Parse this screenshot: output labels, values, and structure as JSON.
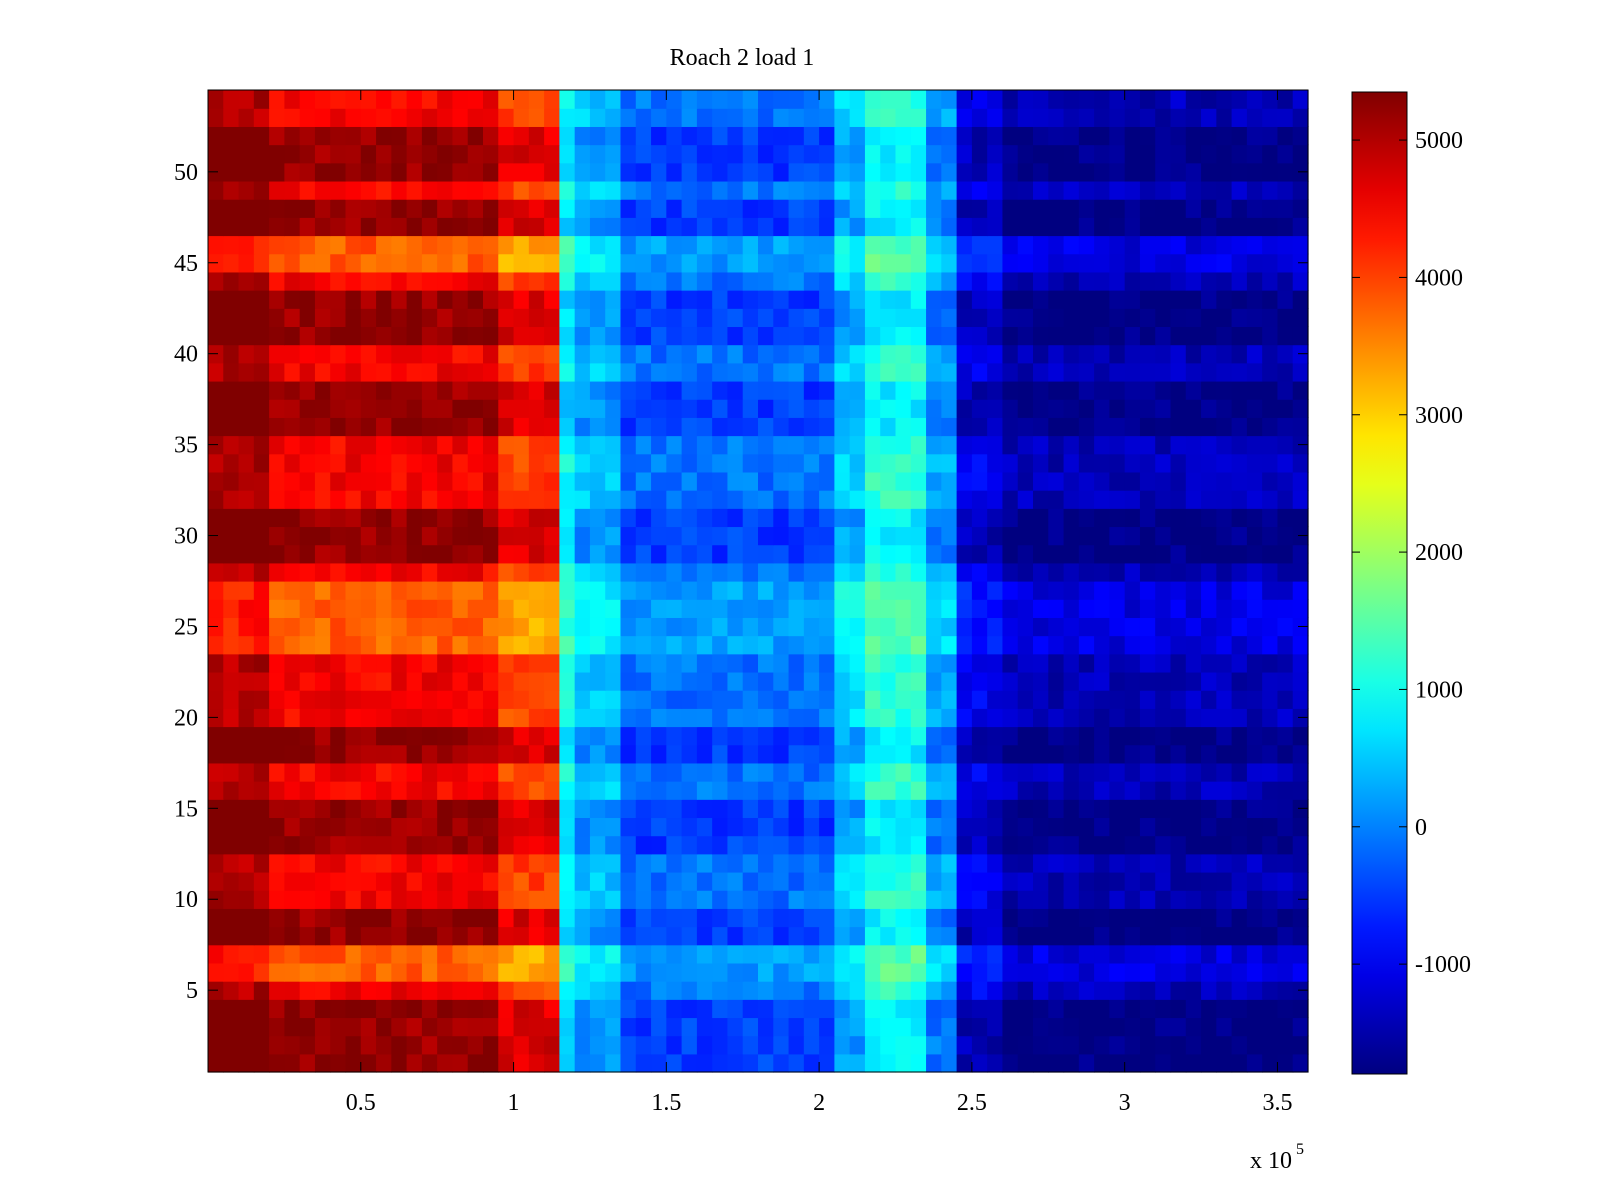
{
  "chart_data": {
    "type": "heatmap",
    "title": "Roach 2 load 1",
    "xlabel": "",
    "ylabel": "",
    "x_exponent_label": "x 10",
    "x_exponent_power": "5",
    "xlim": [
      0,
      360000
    ],
    "ylim": [
      0.5,
      54.5
    ],
    "x_ticks": [
      {
        "value": 50000,
        "label": "0.5"
      },
      {
        "value": 100000,
        "label": "1"
      },
      {
        "value": 150000,
        "label": "1.5"
      },
      {
        "value": 200000,
        "label": "2"
      },
      {
        "value": 250000,
        "label": "2.5"
      },
      {
        "value": 300000,
        "label": "3"
      },
      {
        "value": 350000,
        "label": "3.5"
      }
    ],
    "y_ticks": [
      {
        "value": 5,
        "label": "5"
      },
      {
        "value": 10,
        "label": "10"
      },
      {
        "value": 15,
        "label": "15"
      },
      {
        "value": 20,
        "label": "20"
      },
      {
        "value": 25,
        "label": "25"
      },
      {
        "value": 30,
        "label": "30"
      },
      {
        "value": 35,
        "label": "35"
      },
      {
        "value": 40,
        "label": "40"
      },
      {
        "value": 45,
        "label": "45"
      },
      {
        "value": 50,
        "label": "50"
      }
    ],
    "colorbar": {
      "colormap": "jet",
      "clim": [
        -1800,
        5350
      ],
      "ticks": [
        {
          "value": 5000,
          "label": "5000"
        },
        {
          "value": 4000,
          "label": "4000"
        },
        {
          "value": 3000,
          "label": "3000"
        },
        {
          "value": 2000,
          "label": "2000"
        },
        {
          "value": 1000,
          "label": "1000"
        },
        {
          "value": 0,
          "label": "0"
        },
        {
          "value": -1000,
          "label": "-1000"
        }
      ]
    },
    "rows": 54,
    "columns": 72,
    "column_bands": [
      {
        "x_start": 0,
        "x_end": 20000,
        "value": 5000
      },
      {
        "x_start": 20000,
        "x_end": 95000,
        "value": 4500
      },
      {
        "x_start": 95000,
        "x_end": 115000,
        "value": 4000
      },
      {
        "x_start": 115000,
        "x_end": 120000,
        "value": 1000
      },
      {
        "x_start": 120000,
        "x_end": 135000,
        "value": 500
      },
      {
        "x_start": 135000,
        "x_end": 205000,
        "value": -100
      },
      {
        "x_start": 205000,
        "x_end": 215000,
        "value": 600
      },
      {
        "x_start": 215000,
        "x_end": 235000,
        "value": 1200
      },
      {
        "x_start": 235000,
        "x_end": 245000,
        "value": 300
      },
      {
        "x_start": 245000,
        "x_end": 260000,
        "value": -1000
      },
      {
        "x_start": 260000,
        "x_end": 360000,
        "value": -1400
      }
    ],
    "row_bands": [
      {
        "y": [
          1,
          4
        ],
        "level": "high"
      },
      {
        "y": [
          6,
          7
        ],
        "level": "low"
      },
      {
        "y": [
          8,
          9
        ],
        "level": "high"
      },
      {
        "y": [
          13,
          15
        ],
        "level": "high"
      },
      {
        "y": [
          18,
          19
        ],
        "level": "high"
      },
      {
        "y": [
          24,
          27
        ],
        "level": "low"
      },
      {
        "y": [
          29,
          31
        ],
        "level": "high"
      },
      {
        "y": [
          36,
          38
        ],
        "level": "high"
      },
      {
        "y": [
          41,
          43
        ],
        "level": "high"
      },
      {
        "y": [
          45,
          46
        ],
        "level": "low"
      },
      {
        "y": [
          47,
          48
        ],
        "level": "high"
      },
      {
        "y": [
          50,
          52
        ],
        "level": "high"
      }
    ]
  }
}
